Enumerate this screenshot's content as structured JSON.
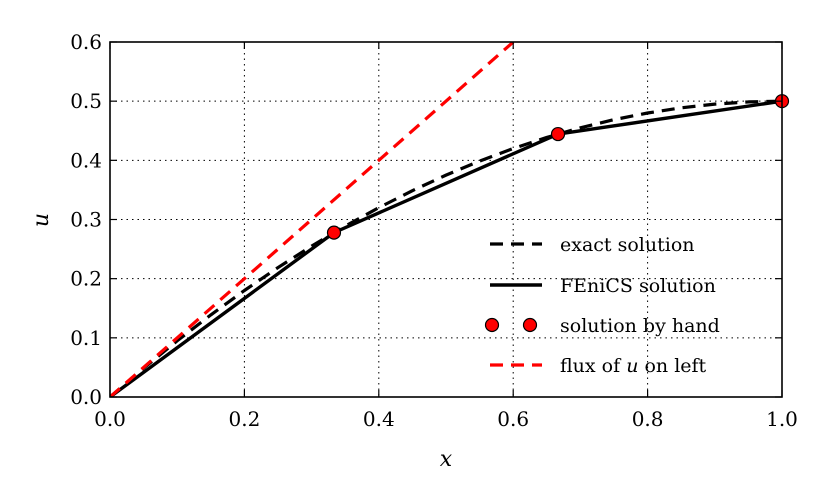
{
  "chart_data": {
    "type": "line",
    "title": "",
    "xlabel": "x",
    "ylabel": "u",
    "xlim": [
      0.0,
      1.0
    ],
    "ylim": [
      0.0,
      0.6
    ],
    "xticks": [
      0.0,
      0.2,
      0.4,
      0.6,
      0.8,
      1.0
    ],
    "yticks": [
      0.0,
      0.1,
      0.2,
      0.3,
      0.4,
      0.5,
      0.6
    ],
    "xtick_labels": [
      "0.0",
      "0.2",
      "0.4",
      "0.6",
      "0.8",
      "1.0"
    ],
    "ytick_labels": [
      "0.0",
      "0.1",
      "0.2",
      "0.3",
      "0.4",
      "0.5",
      "0.6"
    ],
    "grid": true,
    "legend_placement": "lower-right",
    "series": [
      {
        "name": "exact solution",
        "style": "dashed",
        "color": "#000000",
        "x": [
          0.0,
          0.05,
          0.1,
          0.15,
          0.2,
          0.25,
          0.3,
          0.35,
          0.4,
          0.45,
          0.5,
          0.55,
          0.6,
          0.65,
          0.7,
          0.75,
          0.8,
          0.85,
          0.9,
          0.95,
          1.0
        ],
        "y": [
          0.0,
          0.04875,
          0.095,
          0.13875,
          0.18,
          0.21875,
          0.255,
          0.28875,
          0.32,
          0.34875,
          0.375,
          0.39875,
          0.42,
          0.43875,
          0.455,
          0.46875,
          0.48,
          0.48875,
          0.495,
          0.49875,
          0.5
        ]
      },
      {
        "name": "FEniCS solution",
        "style": "solid",
        "color": "#000000",
        "x": [
          0.0,
          0.3333,
          0.6667,
          1.0
        ],
        "y": [
          0.0,
          0.2778,
          0.4444,
          0.5
        ]
      },
      {
        "name": "solution by hand",
        "style": "markers",
        "color": "#ff0000",
        "x": [
          0.3333,
          0.6667,
          1.0
        ],
        "y": [
          0.2778,
          0.4444,
          0.5
        ]
      },
      {
        "name": "flux of u on left",
        "legend_prefix": "flux of ",
        "legend_var": "u",
        "legend_suffix": " on left",
        "style": "dashed",
        "color": "#ff0000",
        "x": [
          0.0,
          0.6
        ],
        "y": [
          0.0,
          0.6
        ]
      }
    ]
  }
}
